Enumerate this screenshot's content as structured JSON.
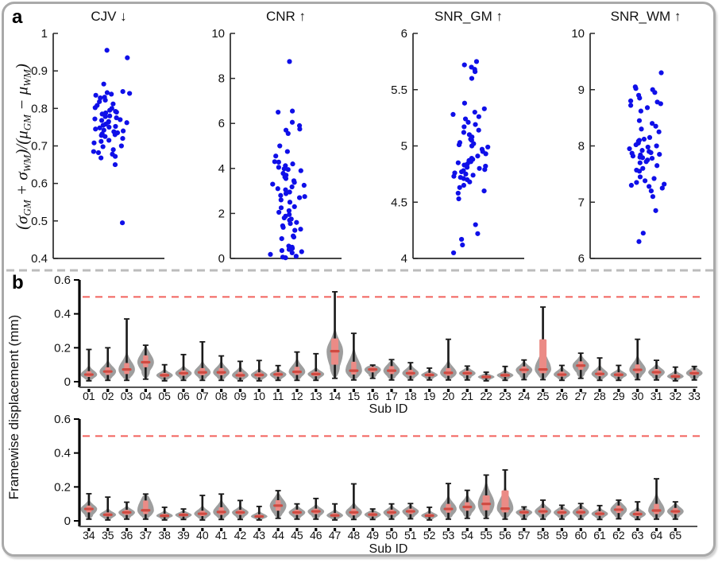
{
  "figure": {
    "panel_a_label": "a",
    "panel_b_label": "b",
    "panel_a_ylabel_parts": [
      {
        "t": "("
      },
      {
        "t": "σ"
      },
      {
        "s": "GM"
      },
      {
        "t": " + "
      },
      {
        "t": "σ"
      },
      {
        "s": "WM"
      },
      {
        "t": ")/("
      },
      {
        "t": "μ"
      },
      {
        "s": "GM"
      },
      {
        "t": " − "
      },
      {
        "t": "μ"
      },
      {
        "s": "WM"
      },
      {
        "t": ")"
      }
    ],
    "panel_b_ylabel": "Framewise displacement (mm)",
    "colors": {
      "point": "#0f0fe8",
      "violin": "#9e9e9e",
      "box": "#eb8b86",
      "median": "#cf4a41",
      "threshold": "#f2625c",
      "axis": "#2b2b2b",
      "xaxis": "#555555",
      "divider": "#bcbcbc",
      "border": "#a9a9a9",
      "text": "#111111"
    }
  },
  "chart_data": {
    "type": [
      "strip",
      "violin"
    ],
    "strip_plots": [
      {
        "title": "CJV ↓",
        "ylim": [
          0.4,
          1
        ],
        "yticks": [
          0.4,
          0.5,
          0.6,
          0.7,
          0.8,
          0.9,
          1
        ],
        "values": [
          0.955,
          0.935,
          0.865,
          0.845,
          0.842,
          0.84,
          0.838,
          0.835,
          0.83,
          0.828,
          0.822,
          0.818,
          0.812,
          0.808,
          0.802,
          0.8,
          0.795,
          0.792,
          0.79,
          0.788,
          0.785,
          0.78,
          0.778,
          0.775,
          0.772,
          0.77,
          0.768,
          0.765,
          0.763,
          0.762,
          0.758,
          0.755,
          0.752,
          0.75,
          0.748,
          0.745,
          0.742,
          0.74,
          0.738,
          0.735,
          0.732,
          0.73,
          0.728,
          0.725,
          0.72,
          0.715,
          0.712,
          0.708,
          0.7,
          0.698,
          0.69,
          0.685,
          0.682,
          0.678,
          0.672,
          0.668,
          0.65,
          0.495
        ]
      },
      {
        "title": "CNR ↑",
        "ylim": [
          0,
          10
        ],
        "yticks": [
          0,
          2,
          4,
          6,
          8,
          10
        ],
        "values": [
          8.75,
          6.55,
          6.5,
          6.05,
          5.9,
          5.75,
          5.7,
          5.55,
          5.0,
          4.75,
          4.55,
          4.3,
          4.28,
          4.2,
          4.12,
          4.05,
          3.98,
          3.95,
          3.9,
          3.78,
          3.7,
          3.62,
          3.55,
          3.45,
          3.38,
          3.3,
          3.25,
          3.18,
          3.1,
          3.05,
          2.95,
          2.88,
          2.8,
          2.75,
          2.7,
          2.6,
          2.5,
          2.3,
          2.25,
          2.12,
          2.05,
          1.95,
          1.88,
          1.8,
          1.75,
          1.7,
          1.6,
          1.55,
          1.45,
          1.38,
          1.3,
          1.25,
          1.0,
          0.95,
          0.88,
          0.55,
          0.5,
          0.45,
          0.4,
          0.35,
          0.3,
          0.25,
          0.18,
          0.1,
          0.06,
          0.03
        ]
      },
      {
        "title": "SNR_GM ↑",
        "ylim": [
          4,
          6
        ],
        "yticks": [
          4,
          4.5,
          5,
          5.5,
          6
        ],
        "values": [
          5.75,
          5.72,
          5.7,
          5.68,
          5.66,
          5.6,
          5.38,
          5.33,
          5.3,
          5.28,
          5.26,
          5.24,
          5.21,
          5.19,
          5.17,
          5.14,
          5.12,
          5.1,
          5.08,
          5.06,
          5.05,
          5.03,
          5.02,
          5.01,
          5.0,
          4.99,
          4.97,
          4.95,
          4.93,
          4.91,
          4.89,
          4.88,
          4.87,
          4.86,
          4.85,
          4.84,
          4.83,
          4.82,
          4.81,
          4.8,
          4.79,
          4.78,
          4.77,
          4.76,
          4.75,
          4.74,
          4.73,
          4.72,
          4.71,
          4.7,
          4.68,
          4.65,
          4.63,
          4.6,
          4.58,
          4.53,
          4.3,
          4.22,
          4.17,
          4.12,
          4.05
        ]
      },
      {
        "title": "SNR_WM ↑",
        "ylim": [
          6,
          10
        ],
        "yticks": [
          6,
          7,
          8,
          9,
          10
        ],
        "values": [
          9.3,
          9.05,
          9.02,
          9.0,
          8.95,
          8.9,
          8.85,
          8.8,
          8.78,
          8.75,
          8.72,
          8.68,
          8.62,
          8.45,
          8.4,
          8.35,
          8.3,
          8.25,
          8.15,
          8.12,
          8.1,
          8.08,
          8.05,
          8.02,
          8.0,
          7.98,
          7.95,
          7.92,
          7.9,
          7.88,
          7.87,
          7.85,
          7.84,
          7.82,
          7.8,
          7.79,
          7.78,
          7.75,
          7.72,
          7.7,
          7.65,
          7.6,
          7.57,
          7.55,
          7.45,
          7.42,
          7.38,
          7.35,
          7.32,
          7.3,
          7.28,
          7.25,
          7.2,
          7.1,
          6.85,
          6.45,
          6.3
        ]
      }
    ],
    "violin_format": [
      "sub_id",
      "whisker_low",
      "q1",
      "median",
      "q3",
      "whisker_high"
    ],
    "violin_rows": [
      {
        "xlabel": "Sub ID",
        "ylim": [
          0,
          0.6
        ],
        "yticks": [
          0,
          0.2,
          0.4,
          0.6
        ],
        "threshold": 0.5,
        "violins": [
          [
            "01",
            0.005,
            0.028,
            0.042,
            0.062,
            0.19
          ],
          [
            "02",
            0.008,
            0.04,
            0.06,
            0.085,
            0.2
          ],
          [
            "03",
            0.008,
            0.045,
            0.072,
            0.11,
            0.37
          ],
          [
            "04",
            0.015,
            0.085,
            0.115,
            0.155,
            0.215
          ],
          [
            "05",
            0.005,
            0.026,
            0.038,
            0.052,
            0.1
          ],
          [
            "06",
            0.008,
            0.035,
            0.05,
            0.067,
            0.16
          ],
          [
            "07",
            0.008,
            0.038,
            0.055,
            0.08,
            0.235
          ],
          [
            "08",
            0.008,
            0.038,
            0.055,
            0.08,
            0.152
          ],
          [
            "09",
            0.005,
            0.025,
            0.038,
            0.058,
            0.12
          ],
          [
            "10",
            0.005,
            0.026,
            0.04,
            0.055,
            0.125
          ],
          [
            "11",
            0.008,
            0.03,
            0.043,
            0.057,
            0.095
          ],
          [
            "12",
            0.008,
            0.04,
            0.058,
            0.088,
            0.175
          ],
          [
            "13",
            0.008,
            0.032,
            0.045,
            0.06,
            0.165
          ],
          [
            "14",
            0.02,
            0.1,
            0.18,
            0.255,
            0.53
          ],
          [
            "15",
            0.01,
            0.042,
            0.065,
            0.118,
            0.285
          ],
          [
            "16",
            0.02,
            0.055,
            0.072,
            0.088,
            0.098
          ],
          [
            "17",
            0.01,
            0.045,
            0.065,
            0.092,
            0.13
          ],
          [
            "18",
            0.01,
            0.035,
            0.05,
            0.07,
            0.112
          ],
          [
            "19",
            0.01,
            0.03,
            0.04,
            0.052,
            0.08
          ],
          [
            "20",
            0.01,
            0.035,
            0.052,
            0.08,
            0.25
          ],
          [
            "21",
            0.01,
            0.038,
            0.05,
            0.065,
            0.092
          ],
          [
            "22",
            0.005,
            0.02,
            0.028,
            0.038,
            0.056
          ],
          [
            "23",
            0.008,
            0.028,
            0.038,
            0.05,
            0.09
          ],
          [
            "24",
            0.012,
            0.05,
            0.07,
            0.09,
            0.128
          ],
          [
            "25",
            0.012,
            0.05,
            0.072,
            0.25,
            0.44
          ],
          [
            "26",
            0.008,
            0.03,
            0.042,
            0.06,
            0.096
          ],
          [
            "27",
            0.02,
            0.07,
            0.095,
            0.12,
            0.168
          ],
          [
            "28",
            0.008,
            0.032,
            0.046,
            0.066,
            0.14
          ],
          [
            "29",
            0.008,
            0.03,
            0.041,
            0.055,
            0.096
          ],
          [
            "30",
            0.012,
            0.05,
            0.07,
            0.102,
            0.25
          ],
          [
            "31",
            0.01,
            0.04,
            0.056,
            0.075,
            0.126
          ],
          [
            "32",
            0.005,
            0.022,
            0.031,
            0.045,
            0.086
          ],
          [
            "33",
            0.01,
            0.038,
            0.05,
            0.068,
            0.09
          ]
        ]
      },
      {
        "xlabel": "Sub ID",
        "ylim": [
          0,
          0.6
        ],
        "yticks": [
          0,
          0.2,
          0.4,
          0.6
        ],
        "threshold": 0.5,
        "violins": [
          [
            "34",
            0.01,
            0.05,
            0.07,
            0.09,
            0.16
          ],
          [
            "35",
            0.005,
            0.025,
            0.036,
            0.05,
            0.14
          ],
          [
            "36",
            0.01,
            0.035,
            0.05,
            0.065,
            0.11
          ],
          [
            "37",
            0.01,
            0.04,
            0.062,
            0.12,
            0.158
          ],
          [
            "38",
            0.005,
            0.022,
            0.03,
            0.042,
            0.08
          ],
          [
            "39",
            0.008,
            0.025,
            0.035,
            0.046,
            0.07
          ],
          [
            "40",
            0.005,
            0.028,
            0.042,
            0.06,
            0.15
          ],
          [
            "41",
            0.008,
            0.035,
            0.052,
            0.08,
            0.158
          ],
          [
            "42",
            0.008,
            0.035,
            0.05,
            0.065,
            0.12
          ],
          [
            "43",
            0.005,
            0.018,
            0.026,
            0.038,
            0.085
          ],
          [
            "44",
            0.015,
            0.06,
            0.09,
            0.122,
            0.178
          ],
          [
            "45",
            0.01,
            0.035,
            0.05,
            0.066,
            0.1
          ],
          [
            "46",
            0.01,
            0.04,
            0.056,
            0.072,
            0.132
          ],
          [
            "47",
            0.005,
            0.022,
            0.032,
            0.046,
            0.1
          ],
          [
            "48",
            0.008,
            0.032,
            0.05,
            0.072,
            0.218
          ],
          [
            "49",
            0.008,
            0.026,
            0.037,
            0.05,
            0.07
          ],
          [
            "50",
            0.01,
            0.035,
            0.05,
            0.066,
            0.1
          ],
          [
            "51",
            0.012,
            0.04,
            0.056,
            0.072,
            0.102
          ],
          [
            "52",
            0.005,
            0.022,
            0.031,
            0.043,
            0.08
          ],
          [
            "53",
            0.01,
            0.048,
            0.07,
            0.1,
            0.22
          ],
          [
            "54",
            0.015,
            0.06,
            0.082,
            0.11,
            0.18
          ],
          [
            "55",
            0.015,
            0.062,
            0.1,
            0.15,
            0.27
          ],
          [
            "56",
            0.01,
            0.05,
            0.072,
            0.18,
            0.3
          ],
          [
            "57",
            0.01,
            0.038,
            0.051,
            0.063,
            0.082
          ],
          [
            "58",
            0.01,
            0.04,
            0.056,
            0.076,
            0.122
          ],
          [
            "59",
            0.01,
            0.036,
            0.05,
            0.066,
            0.092
          ],
          [
            "60",
            0.01,
            0.036,
            0.051,
            0.07,
            0.102
          ],
          [
            "61",
            0.008,
            0.03,
            0.042,
            0.056,
            0.09
          ],
          [
            "62",
            0.012,
            0.046,
            0.066,
            0.09,
            0.122
          ],
          [
            "63",
            0.008,
            0.028,
            0.04,
            0.056,
            0.112
          ],
          [
            "64",
            0.01,
            0.04,
            0.061,
            0.1,
            0.248
          ],
          [
            "65",
            0.01,
            0.04,
            0.056,
            0.076,
            0.112
          ]
        ]
      }
    ]
  }
}
